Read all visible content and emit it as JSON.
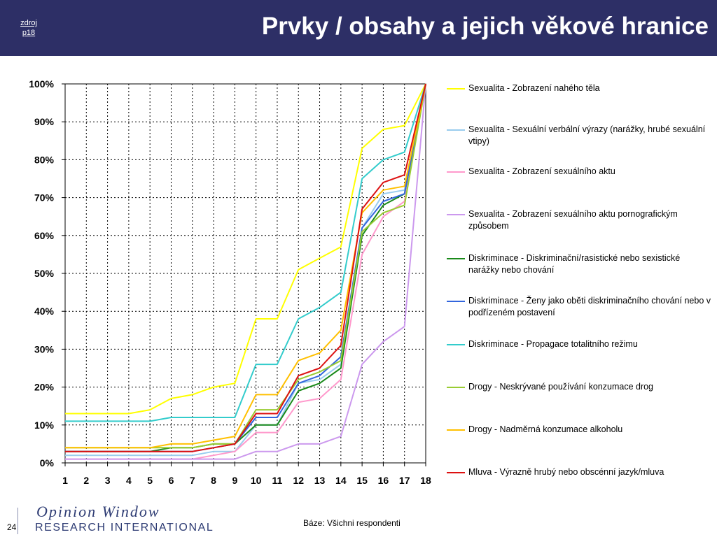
{
  "header": {
    "source_link": "zdroj p18",
    "title": "Prvky / obsahy a jejich věkové hranice",
    "background": "#2d2f66"
  },
  "chart_data": {
    "type": "line",
    "x": [
      1,
      2,
      3,
      4,
      5,
      6,
      7,
      8,
      9,
      10,
      11,
      12,
      13,
      14,
      15,
      16,
      17,
      18
    ],
    "x_tick_labels": [
      "1",
      "2",
      "3",
      "4",
      "5",
      "6",
      "7",
      "8",
      "9",
      "10",
      "11",
      "12",
      "13",
      "14",
      "15",
      "16",
      "17",
      "18"
    ],
    "y_tick_labels": [
      "0%",
      "10%",
      "20%",
      "30%",
      "40%",
      "50%",
      "60%",
      "70%",
      "80%",
      "90%",
      "100%"
    ],
    "ylim": [
      0,
      100
    ],
    "grid": true,
    "legend_position": "right",
    "series": [
      {
        "name": "Sexualita - Zobrazení nahého těla",
        "color": "#ffff00",
        "values": [
          13,
          13,
          13,
          13,
          14,
          17,
          18,
          20,
          21,
          38,
          38,
          51,
          54,
          57,
          83,
          88,
          89,
          100
        ]
      },
      {
        "name": "Sexualita - Sexuální verbální výrazy (narážky, hrubé sexuální vtipy)",
        "color": "#99ccee",
        "values": [
          2,
          2,
          2,
          2,
          2,
          2,
          2,
          3,
          3,
          10,
          10,
          21,
          22,
          26,
          62,
          71,
          72,
          100
        ]
      },
      {
        "name": "Sexualita - Zobrazení sexuálního aktu",
        "color": "#ff99cc",
        "values": [
          1,
          1,
          1,
          1,
          1,
          1,
          1,
          2,
          3,
          8,
          8,
          16,
          17,
          22,
          55,
          65,
          69,
          100
        ]
      },
      {
        "name": "Sexualita - Zobrazení sexuálního aktu pornografickým způsobem",
        "color": "#cc99ee",
        "values": [
          1,
          1,
          1,
          1,
          1,
          1,
          1,
          1,
          1,
          3,
          3,
          5,
          5,
          7,
          26,
          32,
          36,
          100
        ]
      },
      {
        "name": "Diskriminace - Diskriminační/rasistické nebo sexistické narážky nebo chování",
        "color": "#1a8a1a",
        "values": [
          3,
          3,
          3,
          3,
          3,
          4,
          4,
          5,
          5,
          10,
          10,
          19,
          21,
          25,
          60,
          68,
          71,
          100
        ]
      },
      {
        "name": "Diskriminace - Ženy jako oběti diskriminačního chování nebo v podřízeném postavení",
        "color": "#3366dd",
        "values": [
          3,
          3,
          3,
          3,
          3,
          3,
          3,
          4,
          5,
          12,
          12,
          21,
          23,
          28,
          62,
          69,
          71,
          100
        ]
      },
      {
        "name": "Diskriminace - Propagace totalitního režimu",
        "color": "#33cccc",
        "values": [
          11,
          11,
          11,
          11,
          11,
          12,
          12,
          12,
          12,
          26,
          26,
          38,
          41,
          45,
          75,
          80,
          82,
          100
        ]
      },
      {
        "name": "Drogy - Neskrývané používání konzumace drog",
        "color": "#99cc33",
        "values": [
          4,
          4,
          4,
          4,
          4,
          4,
          4,
          5,
          5,
          14,
          14,
          22,
          24,
          27,
          61,
          66,
          68,
          100
        ]
      },
      {
        "name": "Drogy - Nadměrná konzumace alkoholu",
        "color": "#ffc000",
        "values": [
          4,
          4,
          4,
          4,
          4,
          5,
          5,
          6,
          7,
          18,
          18,
          27,
          29,
          35,
          66,
          72,
          73,
          100
        ]
      },
      {
        "name": "Mluva - Výrazně hrubý nebo obscénní jazyk/mluva",
        "color": "#dd1111",
        "values": [
          3,
          3,
          3,
          3,
          3,
          3,
          3,
          4,
          5,
          13,
          13,
          23,
          25,
          31,
          67,
          74,
          76,
          100
        ]
      }
    ]
  },
  "footer": {
    "page_number": "24",
    "base_note": "Báze: Všichni respondenti",
    "logo_line1": "Opinion Window",
    "logo_line2": "RESEARCH INTERNATIONAL"
  }
}
